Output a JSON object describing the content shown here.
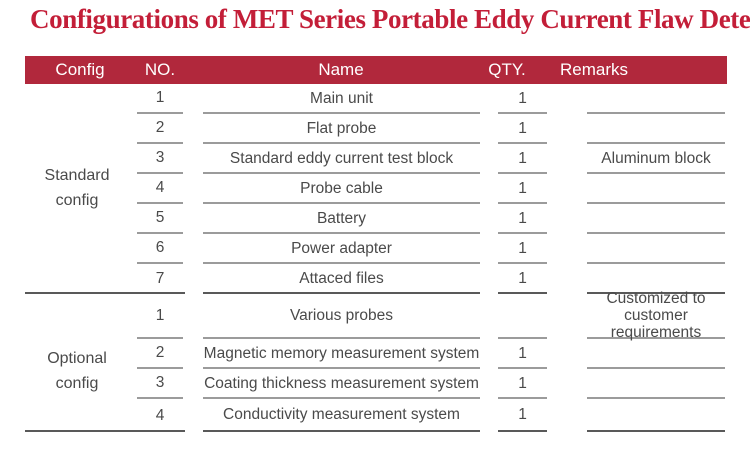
{
  "title": "Configurations of MET Series Portable Eddy Current Flaw Detector",
  "colors": {
    "header_bar_red": "#b1283c",
    "title_red": "#c31e38",
    "text_gray": "#4a4a4a",
    "row_line_gray": "#9b9b9b",
    "section_line_dark": "#595959"
  },
  "table": {
    "headers": [
      "Config",
      "NO.",
      "Name",
      "QTY.",
      "Remarks"
    ],
    "sections": [
      {
        "config": "Standard config",
        "rows": [
          {
            "no": "1",
            "name": "Main unit",
            "qty": "1",
            "remarks": ""
          },
          {
            "no": "2",
            "name": "Flat probe",
            "qty": "1",
            "remarks": ""
          },
          {
            "no": "3",
            "name": "Standard eddy current test block",
            "qty": "1",
            "remarks": "Aluminum block"
          },
          {
            "no": "4",
            "name": "Probe cable",
            "qty": "1",
            "remarks": ""
          },
          {
            "no": "5",
            "name": "Battery",
            "qty": "1",
            "remarks": ""
          },
          {
            "no": "6",
            "name": "Power adapter",
            "qty": "1",
            "remarks": ""
          },
          {
            "no": "7",
            "name": "Attaced files",
            "qty": "1",
            "remarks": ""
          }
        ]
      },
      {
        "config": "Optional config",
        "rows": [
          {
            "no": "1",
            "name": "Various probes",
            "qty": "",
            "remarks": "Customized to customer requirements",
            "tall": true
          },
          {
            "no": "2",
            "name": "Magnetic memory measurement system",
            "qty": "1",
            "remarks": ""
          },
          {
            "no": "3",
            "name": "Coating thickness measurement system",
            "qty": "1",
            "remarks": ""
          },
          {
            "no": "4",
            "name": "Conductivity measurement system",
            "qty": "1",
            "remarks": ""
          }
        ]
      }
    ]
  }
}
